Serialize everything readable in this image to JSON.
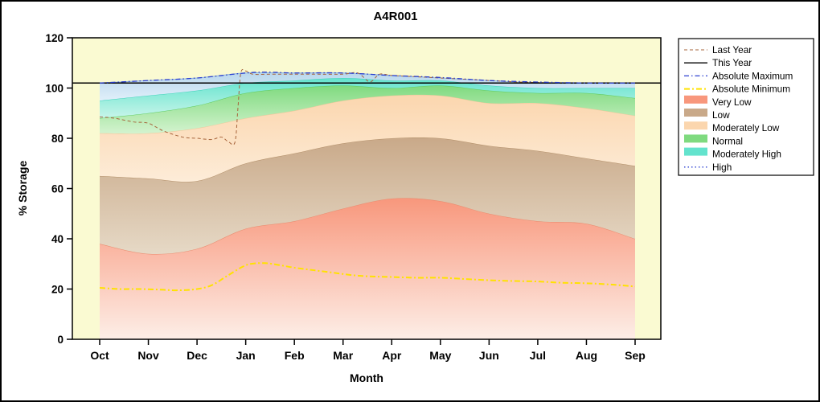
{
  "chart_data": {
    "type": "area",
    "title": "A4R001",
    "xlabel": "Month",
    "ylabel": "% Storage",
    "ylim": [
      0,
      120
    ],
    "y_ticks": [
      0,
      20,
      40,
      60,
      80,
      100,
      120
    ],
    "categories": [
      "Oct",
      "Nov",
      "Dec",
      "Jan",
      "Feb",
      "Mar",
      "Apr",
      "May",
      "Jun",
      "Jul",
      "Aug",
      "Sep"
    ],
    "plot_bg": "#fafad2",
    "legend_position": "outside-right",
    "bands": [
      {
        "name": "Very Low",
        "top": [
          38,
          34,
          36,
          44,
          47,
          52,
          56,
          55,
          50,
          47,
          46,
          40
        ],
        "color_top": "#f8977c",
        "color_bottom": "#fdeee7",
        "edge": "#e98a6d"
      },
      {
        "name": "Low",
        "top": [
          65,
          64,
          63,
          70,
          74,
          78,
          80,
          80,
          77,
          75,
          72,
          69
        ],
        "color_top": "#c9a989",
        "color_bottom": "#e6d9c6",
        "edge": "#b3906a"
      },
      {
        "name": "Moderately Low",
        "top": [
          82,
          82,
          84,
          88,
          91,
          95,
          97,
          97,
          94,
          94,
          92,
          89
        ],
        "color_top": "#fbd6ae",
        "color_bottom": "#fdecd8",
        "edge": "#eec79a"
      },
      {
        "name": "Normal",
        "top": [
          88,
          90,
          93,
          98,
          100,
          101,
          100,
          101,
          99,
          98,
          98,
          96
        ],
        "color_top": "#7fda7f",
        "color_bottom": "#d4f3cf",
        "edge": "#5ecb5e"
      },
      {
        "name": "Moderately High",
        "top": [
          95,
          97,
          99,
          102,
          103,
          104,
          103,
          103,
          101,
          100,
          100,
          100
        ],
        "color_top": "#63e3cd",
        "color_bottom": "#c8f5ea",
        "edge": "#3ed2ba"
      },
      {
        "name": "High",
        "top": [
          102,
          103,
          104,
          106,
          106,
          106,
          105,
          104,
          103,
          102,
          102,
          102
        ],
        "color_top": "#b9d7ec",
        "color_bottom": "#e0effa",
        "edge": "#8fb4d6"
      }
    ],
    "lines": [
      {
        "name": "Last Year",
        "color": "#a6633a",
        "width": 1,
        "dash": "4 3",
        "points": [
          [
            0,
            88.5
          ],
          [
            0.3,
            88
          ],
          [
            0.7,
            86.5
          ],
          [
            1,
            86
          ],
          [
            1.3,
            83
          ],
          [
            1.7,
            80.5
          ],
          [
            2,
            80
          ],
          [
            2.3,
            79.5
          ],
          [
            2.5,
            80.5
          ],
          [
            2.65,
            78.5
          ],
          [
            2.78,
            78.5
          ],
          [
            2.84,
            92
          ],
          [
            2.9,
            106
          ],
          [
            3.0,
            106.8
          ],
          [
            3.15,
            105.5
          ],
          [
            3.5,
            105.5
          ],
          [
            4,
            105.5
          ],
          [
            4.5,
            105.5
          ],
          [
            5,
            105.5
          ],
          [
            5.3,
            106
          ],
          [
            5.55,
            102.5
          ],
          [
            5.75,
            105.5
          ],
          [
            6,
            105
          ],
          [
            6.5,
            104.5
          ],
          [
            7,
            104
          ],
          [
            7.5,
            103.5
          ],
          [
            8,
            103
          ],
          [
            8.5,
            102.5
          ],
          [
            9,
            102.2
          ],
          [
            9.5,
            102
          ],
          [
            10,
            102
          ],
          [
            10.5,
            102
          ],
          [
            11,
            102
          ]
        ]
      },
      {
        "name": "This Year",
        "color": "#000000",
        "width": 1.5,
        "dash": "",
        "points": [
          [
            -0.56,
            102
          ],
          [
            11.53,
            102
          ]
        ]
      },
      {
        "name": "Absolute Maximum",
        "color": "#2b3fd0",
        "width": 1.3,
        "dash": "6 3 1.5 3",
        "points": [
          [
            0,
            102
          ],
          [
            1,
            103
          ],
          [
            2,
            104
          ],
          [
            3,
            106
          ],
          [
            3.5,
            106.3
          ],
          [
            4,
            106
          ],
          [
            5,
            106
          ],
          [
            6,
            105
          ],
          [
            7,
            104.2
          ],
          [
            8,
            103
          ],
          [
            9,
            102.4
          ],
          [
            10,
            102
          ],
          [
            11,
            102
          ]
        ]
      },
      {
        "name": "Absolute Minimum",
        "color": "#ffe200",
        "width": 2,
        "dash": "7 3 2 3",
        "points": [
          [
            0,
            20.5
          ],
          [
            0.4,
            20
          ],
          [
            0.8,
            20
          ],
          [
            1.2,
            19.8
          ],
          [
            1.6,
            19.5
          ],
          [
            2,
            20
          ],
          [
            2.3,
            21.5
          ],
          [
            2.6,
            25
          ],
          [
            2.9,
            28.5
          ],
          [
            3.1,
            30
          ],
          [
            3.4,
            30.3
          ],
          [
            3.7,
            29.5
          ],
          [
            4,
            28.5
          ],
          [
            4.4,
            27.5
          ],
          [
            4.8,
            26.5
          ],
          [
            5.2,
            25.5
          ],
          [
            5.6,
            25
          ],
          [
            6,
            24.8
          ],
          [
            6.5,
            24.5
          ],
          [
            7,
            24.5
          ],
          [
            7.5,
            24
          ],
          [
            8,
            23.5
          ],
          [
            8.5,
            23.2
          ],
          [
            9,
            23
          ],
          [
            9.5,
            22.5
          ],
          [
            10,
            22.3
          ],
          [
            10.5,
            21.8
          ],
          [
            11,
            21
          ]
        ]
      }
    ],
    "legend": [
      {
        "label": "Last Year",
        "type": "line",
        "color": "#a6633a",
        "dash": "4 3",
        "width": 1
      },
      {
        "label": "This Year",
        "type": "line",
        "color": "#000000",
        "dash": "",
        "width": 1.4
      },
      {
        "label": "Absolute Maximum",
        "type": "line",
        "color": "#2b3fd0",
        "dash": "6 3 1.5 3",
        "width": 1.3
      },
      {
        "label": "Absolute Minimum",
        "type": "line",
        "color": "#ffe200",
        "dash": "7 3 2 3",
        "width": 2
      },
      {
        "label": "Very Low",
        "type": "patch",
        "color": "#f8977c"
      },
      {
        "label": "Low",
        "type": "patch",
        "color": "#c9a989"
      },
      {
        "label": "Moderately Low",
        "type": "patch",
        "color": "#fbd6ae"
      },
      {
        "label": "Normal",
        "type": "patch",
        "color": "#7fda7f"
      },
      {
        "label": "Moderately High",
        "type": "patch",
        "color": "#63e3cd"
      },
      {
        "label": "High",
        "type": "line",
        "color": "#2b3fd0",
        "dash": "1.5 3",
        "width": 1.3
      }
    ]
  }
}
